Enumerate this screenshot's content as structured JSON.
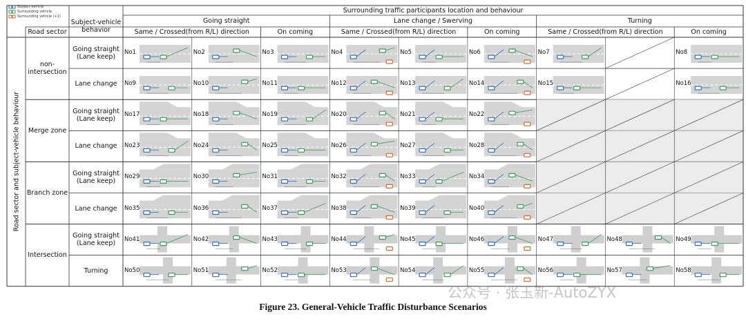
{
  "legend": [
    "Subject-vehicle",
    "Surrounding vehicle",
    "Surrounding vehicle (+1)"
  ],
  "table": {
    "header": "Surrounding traffic participants location and behaviour",
    "side_label": "Road sector and subject-vehicle behaviour",
    "road_sector_header": "Road sector",
    "behavior_header": "Subject-vehicle behavior",
    "groups": [
      {
        "name": "Going straight",
        "sub": [
          "Same / Crossed(from R/L) direction",
          "On coming"
        ]
      },
      {
        "name": "Lane change / Swerving",
        "sub": [
          "Same / Crossed(from R/L) direction",
          "On coming"
        ]
      },
      {
        "name": "Turning",
        "sub": [
          "Same / Crossed(from R/L) direction",
          "On coming"
        ]
      }
    ],
    "sectors": [
      {
        "name": "non-intersection",
        "rows": [
          {
            "behavior": "Going straight (Lane keep)",
            "cells": [
              "No1",
              "No2",
              "No3",
              "No4",
              "No5",
              "No6",
              "No7",
              null,
              "No8"
            ]
          },
          {
            "behavior": "Lane change",
            "cells": [
              "No9",
              "No10",
              "No11",
              "No12",
              "No13",
              "No14",
              "No15",
              null,
              "No16"
            ]
          }
        ]
      },
      {
        "name": "Merge zone",
        "rows": [
          {
            "behavior": "Going straight (Lane keep)",
            "cells": [
              "No17",
              "No18",
              "No19",
              "No20",
              "No21",
              "No22",
              null,
              null,
              null
            ]
          },
          {
            "behavior": "Lane change",
            "cells": [
              "No23",
              "No24",
              "No25",
              "No26",
              "No27",
              "No28",
              null,
              null,
              null
            ]
          }
        ]
      },
      {
        "name": "Branch zone",
        "rows": [
          {
            "behavior": "Going straight (Lane keep)",
            "cells": [
              "No29",
              "No30",
              "No31",
              "No32",
              "No33",
              "No34",
              null,
              null,
              null
            ]
          },
          {
            "behavior": "Lane change",
            "cells": [
              "No35",
              "No36",
              "No37",
              "No38",
              "No39",
              "No40",
              null,
              null,
              null
            ]
          }
        ]
      },
      {
        "name": "Intersection",
        "rows": [
          {
            "behavior": "Going straight (Lane keep)",
            "cells": [
              "No41",
              "No42",
              "No43",
              "No44",
              "No45",
              "No46",
              "No47",
              "No48",
              "No49"
            ]
          },
          {
            "behavior": "Turning",
            "cells": [
              "No50",
              "No51",
              "No52",
              "No53",
              "No54",
              "No55",
              "No56",
              "No57",
              "No58"
            ]
          }
        ]
      }
    ]
  },
  "caption": "Figure 23. General-Vehicle Traffic Disturbance Scenarios",
  "watermark": "公众号 · 张玉新-AutoZYX"
}
